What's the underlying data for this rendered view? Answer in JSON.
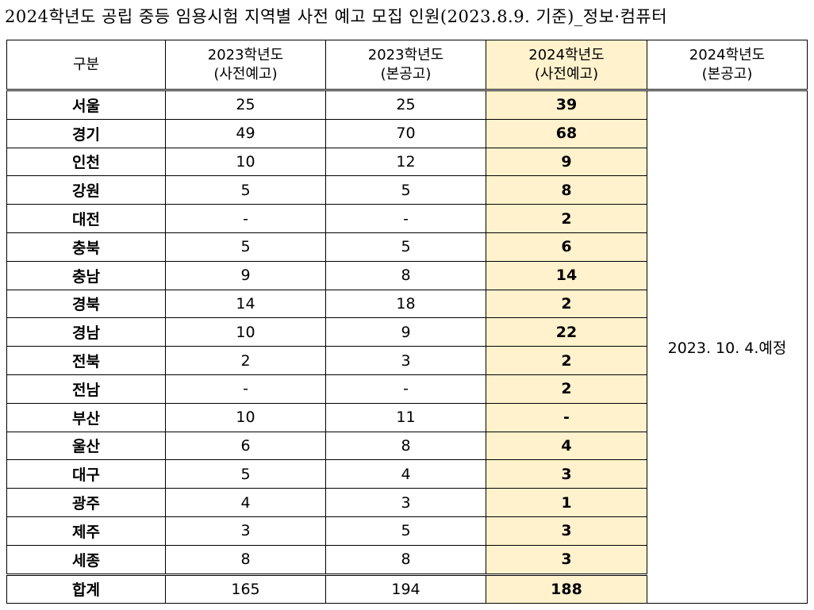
{
  "title": "2024학년도 공립 중등 임용시험 지역별 사전 예고 모집 인원(2023.8.9. 기준)_정보·컴퓨터",
  "headers": [
    {
      "line1": "구분",
      "line2": ""
    },
    {
      "line1": "2023학년도",
      "line2": "(사전예고)"
    },
    {
      "line1": "2023학년도",
      "line2": "(본공고)"
    },
    {
      "line1": "2024학년도",
      "line2": "(사전예고)"
    },
    {
      "line1": "2024학년도",
      "line2": "(본공고)"
    }
  ],
  "highlight_color": "#fff2cc",
  "merged_note": "2023. 10. 4.예정",
  "rows": [
    {
      "region": "서울",
      "pre2023": "25",
      "main2023": "25",
      "pre2024": "39"
    },
    {
      "region": "경기",
      "pre2023": "49",
      "main2023": "70",
      "pre2024": "68"
    },
    {
      "region": "인천",
      "pre2023": "10",
      "main2023": "12",
      "pre2024": "9"
    },
    {
      "region": "강원",
      "pre2023": "5",
      "main2023": "5",
      "pre2024": "8"
    },
    {
      "region": "대전",
      "pre2023": "-",
      "main2023": "-",
      "pre2024": "2"
    },
    {
      "region": "충북",
      "pre2023": "5",
      "main2023": "5",
      "pre2024": "6"
    },
    {
      "region": "충남",
      "pre2023": "9",
      "main2023": "8",
      "pre2024": "14"
    },
    {
      "region": "경북",
      "pre2023": "14",
      "main2023": "18",
      "pre2024": "2"
    },
    {
      "region": "경남",
      "pre2023": "10",
      "main2023": "9",
      "pre2024": "22"
    },
    {
      "region": "전북",
      "pre2023": "2",
      "main2023": "3",
      "pre2024": "2"
    },
    {
      "region": "전남",
      "pre2023": "-",
      "main2023": "-",
      "pre2024": "2"
    },
    {
      "region": "부산",
      "pre2023": "10",
      "main2023": "11",
      "pre2024": "-"
    },
    {
      "region": "울산",
      "pre2023": "6",
      "main2023": "8",
      "pre2024": "4"
    },
    {
      "region": "대구",
      "pre2023": "5",
      "main2023": "4",
      "pre2024": "3"
    },
    {
      "region": "광주",
      "pre2023": "4",
      "main2023": "3",
      "pre2024": "1"
    },
    {
      "region": "제주",
      "pre2023": "3",
      "main2023": "5",
      "pre2024": "3"
    },
    {
      "region": "세종",
      "pre2023": "8",
      "main2023": "8",
      "pre2024": "3"
    }
  ],
  "total": {
    "region": "합계",
    "pre2023": "165",
    "main2023": "194",
    "pre2024": "188"
  }
}
